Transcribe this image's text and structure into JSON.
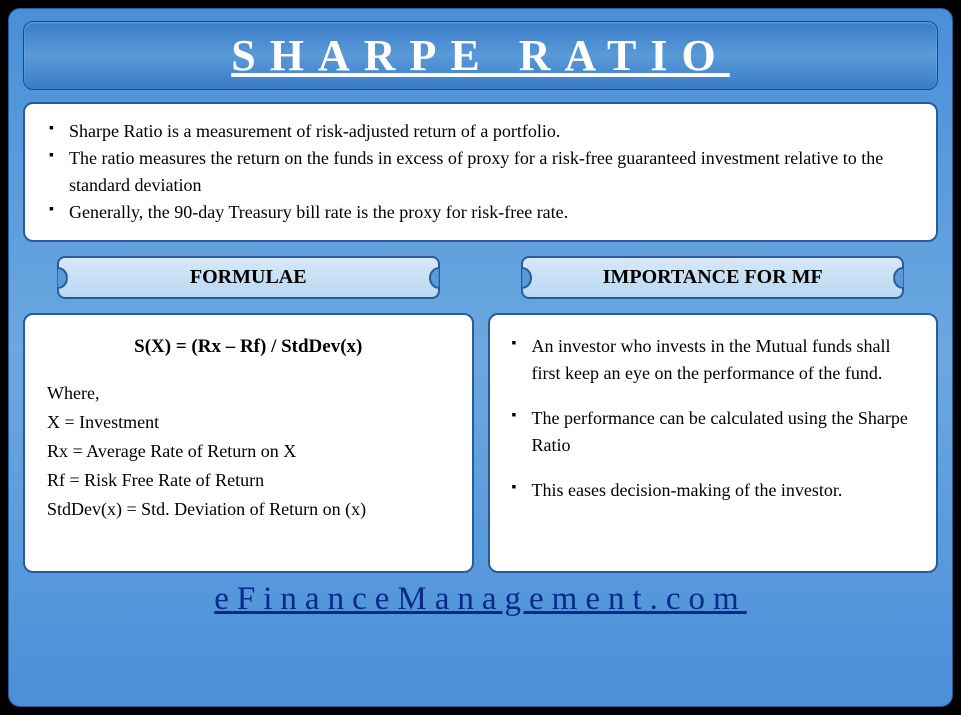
{
  "title": "SHARPE RATIO",
  "intro": {
    "items": [
      "Sharpe Ratio is a measurement of risk-adjusted return of a portfolio.",
      "The ratio measures the return on the funds in excess of proxy for a risk-free guaranteed investment relative to the standard deviation",
      "Generally, the 90-day Treasury bill rate is the proxy for risk-free rate."
    ]
  },
  "left": {
    "label": "FORMULAE",
    "formula": "S(X) = (Rx – Rf) / StdDev(x)",
    "where_heading": "Where,",
    "defs": [
      "X = Investment",
      "Rx = Average Rate of Return on X",
      "Rf = Risk Free Rate of Return",
      "StdDev(x) = Std. Deviation of Return on (x)"
    ]
  },
  "right": {
    "label": "IMPORTANCE FOR MF",
    "items": [
      "An investor who invests in the Mutual funds shall first keep an eye on the performance of the fund.",
      "The performance can be calculated using the Sharpe Ratio",
      "This eases decision-making of the investor."
    ]
  },
  "footer": "eFinanceManagement.com",
  "colors": {
    "bg_gradient_top": "#4a8fd8",
    "bg_gradient_bottom": "#3a7bc8",
    "border": "#2a5a9a",
    "label_bg_top": "#d8e8f8",
    "label_bg_bottom": "#b8d8f0",
    "link": "#0a2a8a",
    "panel_bg": "#ffffff"
  },
  "typography": {
    "title_size": 44,
    "title_letterspacing": 14,
    "body_size": 18,
    "label_size": 20,
    "footer_size": 33,
    "footer_letterspacing": 8,
    "family": "Georgia, serif"
  }
}
